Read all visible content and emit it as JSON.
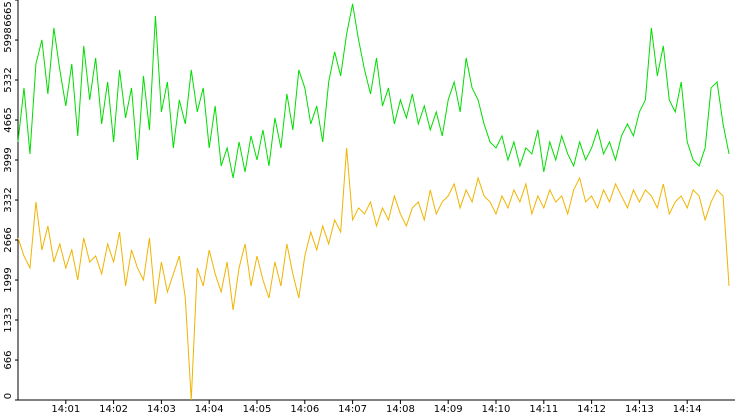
{
  "chart_data": {
    "type": "line",
    "categories": [
      null,
      null,
      null,
      null,
      null,
      null,
      null,
      null,
      "14:01",
      null,
      null,
      null,
      null,
      null,
      null,
      null,
      "14:02",
      null,
      null,
      null,
      null,
      null,
      null,
      null,
      "14:03",
      null,
      null,
      null,
      null,
      null,
      null,
      null,
      "14:04",
      null,
      null,
      null,
      null,
      null,
      null,
      null,
      "14:05",
      null,
      null,
      null,
      null,
      null,
      null,
      null,
      "14:06",
      null,
      null,
      null,
      null,
      null,
      null,
      null,
      "14:07",
      null,
      null,
      null,
      null,
      null,
      null,
      null,
      "14:08",
      null,
      null,
      null,
      null,
      null,
      null,
      null,
      "14:09",
      null,
      null,
      null,
      null,
      null,
      null,
      null,
      "14:10",
      null,
      null,
      null,
      null,
      null,
      null,
      null,
      "14:11",
      null,
      null,
      null,
      null,
      null,
      null,
      null,
      "14:12",
      null,
      null,
      null,
      null,
      null,
      null,
      null,
      "14:13",
      null,
      null,
      null,
      null,
      null,
      null,
      null,
      "14:14",
      null,
      null,
      null,
      null,
      null,
      null,
      null
    ],
    "series": [
      {
        "color": "#00dd00",
        "values": [
          4300,
          5200,
          4100,
          5600,
          6000,
          5100,
          6200,
          5500,
          4900,
          5600,
          4400,
          5900,
          5000,
          5700,
          4600,
          5300,
          4300,
          5500,
          4700,
          5200,
          4000,
          5400,
          4500,
          6400,
          4800,
          5300,
          4200,
          5000,
          4600,
          5500,
          4800,
          5200,
          4200,
          4900,
          3900,
          4200,
          3700,
          4300,
          3800,
          4400,
          4000,
          4500,
          3900,
          4700,
          4200,
          5100,
          4500,
          5500,
          5200,
          4600,
          4900,
          4300,
          5300,
          5800,
          5400,
          6100,
          6600,
          6000,
          5500,
          5100,
          5700,
          4900,
          5200,
          4600,
          5000,
          4700,
          5100,
          4600,
          4900,
          4500,
          4800,
          4400,
          5000,
          5300,
          4800,
          5700,
          5200,
          5000,
          4600,
          4300,
          4200,
          4400,
          4000,
          4300,
          3900,
          4200,
          4100,
          4500,
          3800,
          4300,
          4000,
          4400,
          4100,
          3900,
          4300,
          4000,
          4200,
          4500,
          4100,
          4300,
          4000,
          4400,
          4600,
          4400,
          4800,
          5000,
          6200,
          5400,
          5900,
          5000,
          4800,
          5300,
          4300,
          4000,
          3900,
          4200,
          5200,
          5300,
          4600,
          4100
        ]
      },
      {
        "color": "#f0b400",
        "values": [
          2700,
          2400,
          2200,
          3300,
          2500,
          2900,
          2300,
          2600,
          2200,
          2500,
          2000,
          2700,
          2300,
          2400,
          2100,
          2600,
          2300,
          2800,
          1900,
          2500,
          2200,
          2000,
          2700,
          1600,
          2300,
          1800,
          2100,
          2400,
          1700,
          0,
          2200,
          1900,
          2500,
          2100,
          1800,
          2300,
          1500,
          2200,
          2600,
          1900,
          2400,
          2000,
          1700,
          2300,
          1900,
          2600,
          2100,
          1700,
          2400,
          2800,
          2500,
          2900,
          2600,
          3000,
          2800,
          4200,
          3000,
          3200,
          3100,
          3300,
          2900,
          3200,
          3000,
          3400,
          3100,
          2900,
          3200,
          3300,
          3000,
          3500,
          3100,
          3300,
          3400,
          3600,
          3200,
          3500,
          3300,
          3700,
          3400,
          3300,
          3100,
          3400,
          3200,
          3500,
          3300,
          3600,
          3100,
          3400,
          3200,
          3500,
          3300,
          3400,
          3100,
          3500,
          3700,
          3300,
          3400,
          3200,
          3500,
          3300,
          3600,
          3400,
          3200,
          3500,
          3300,
          3500,
          3400,
          3200,
          3600,
          3100,
          3300,
          3400,
          3200,
          3500,
          3400,
          3000,
          3300,
          3500,
          3400,
          1900
        ]
      }
    ],
    "ylim": [
      0,
      6665
    ],
    "yticks": [
      0,
      666,
      1333,
      1999,
      2666,
      3332,
      3999,
      4665,
      5332,
      5998,
      6665
    ]
  }
}
